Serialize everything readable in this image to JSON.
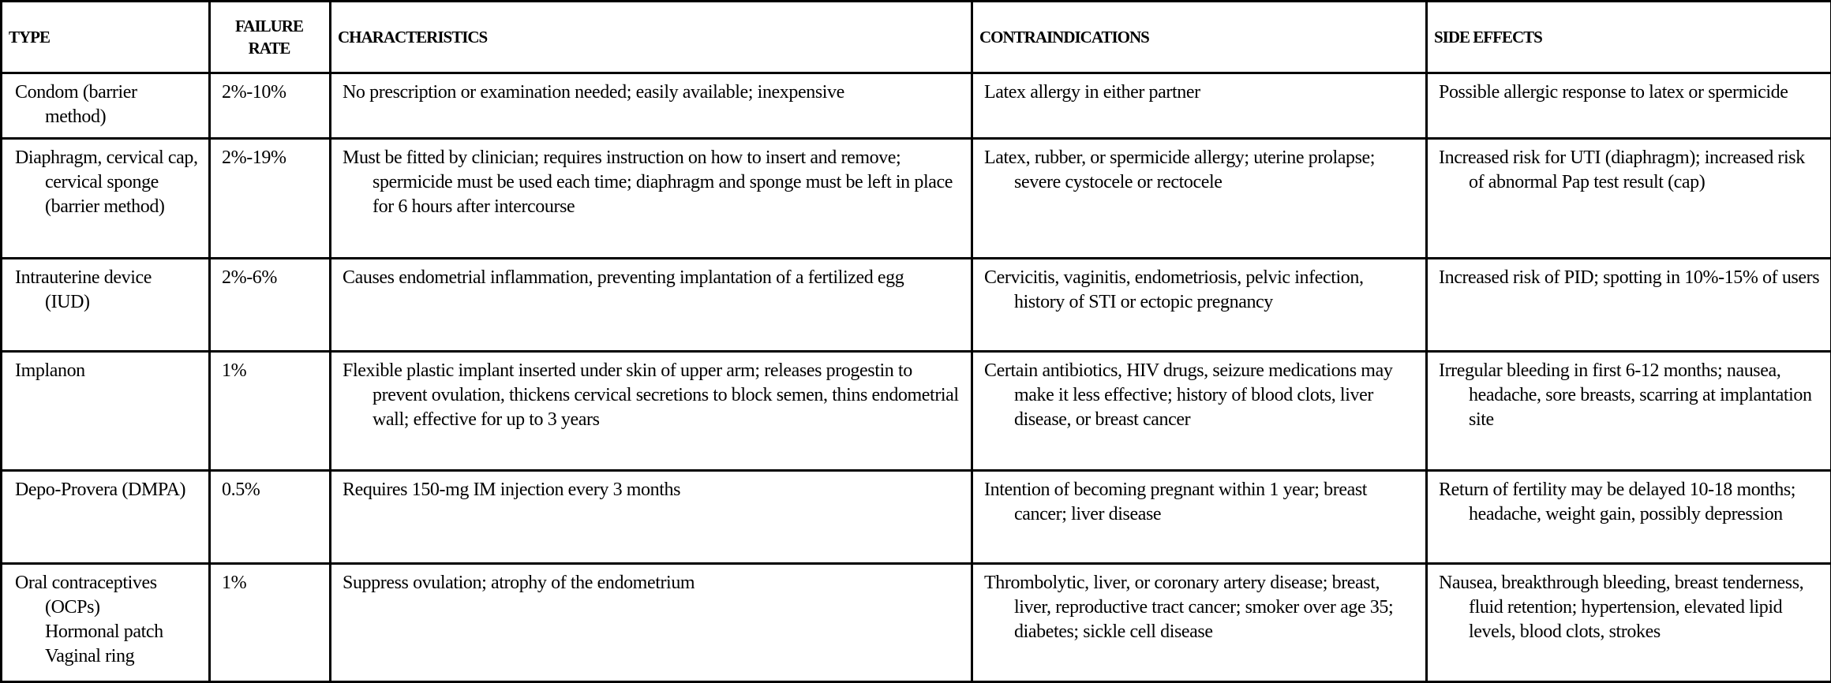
{
  "headers": [
    "TYPE",
    "FAILURE RATE",
    "CHARACTERISTICS",
    "CONTRAINDICATIONS",
    "SIDE EFFECTS"
  ],
  "rows": [
    {
      "type": "Condom (barrier method)",
      "failure_rate": "2%-10%",
      "characteristics": "No prescription or examination needed; easily available; inexpensive",
      "contraindications": "Latex allergy in either partner",
      "side_effects": "Possible allergic response to latex or spermicide"
    },
    {
      "type": "Diaphragm, cervical cap, cervical sponge (barrier method)",
      "failure_rate": "2%-19%",
      "characteristics": "Must be fitted by clinician; requires instruction on how to insert and remove; spermicide must be used each time; diaphragm and sponge must be left in place for 6 hours after intercourse",
      "contraindications": "Latex, rubber, or spermicide allergy; uterine prolapse; severe cystocele or rectocele",
      "side_effects": "Increased risk for UTI (diaphragm); increased risk of abnormal Pap test result (cap)"
    },
    {
      "type": "Intrauterine device (IUD)",
      "failure_rate": "2%-6%",
      "characteristics": "Causes endometrial inflammation, preventing implantation of a fertilized egg",
      "contraindications": "Cervicitis, vaginitis, endometriosis, pelvic infection, history of STI or ectopic pregnancy",
      "side_effects": "Increased risk of PID; spotting in 10%-15% of users"
    },
    {
      "type": "Implanon",
      "failure_rate": "1%",
      "characteristics": "Flexible plastic implant inserted under skin of upper arm; releases progestin to prevent ovulation, thickens cervical secretions to block semen, thins endometrial wall; effective for up to 3 years",
      "contraindications": "Certain antibiotics, HIV drugs, seizure medications may make it less effective; history of blood clots, liver disease, or breast cancer",
      "side_effects": "Irregular bleeding in first 6-12 months; nausea, headache, sore breasts, scarring at implantation site"
    },
    {
      "type": "Depo-Provera (DMPA)",
      "failure_rate": "0.5%",
      "characteristics": "Requires 150-mg IM injection every 3 months",
      "contraindications": "Intention of becoming pregnant within 1 year; breast cancer; liver disease",
      "side_effects": "Return of fertility may be delayed 10-18 months; headache, weight gain, possibly depression"
    },
    {
      "type": "Oral contraceptives (OCPs) Hormonal patch Vaginal ring",
      "failure_rate": "1%",
      "characteristics": "Suppress ovulation; atrophy of the endometrium",
      "contraindications": "Thrombolytic, liver, or coronary artery disease; breast, liver, reproductive tract cancer; smoker over age 35; diabetes; sickle cell disease",
      "side_effects": "Nausea, breakthrough bleeding, breast tenderness, fluid retention; hypertension, elevated lipid levels, blood clots, strokes"
    }
  ]
}
